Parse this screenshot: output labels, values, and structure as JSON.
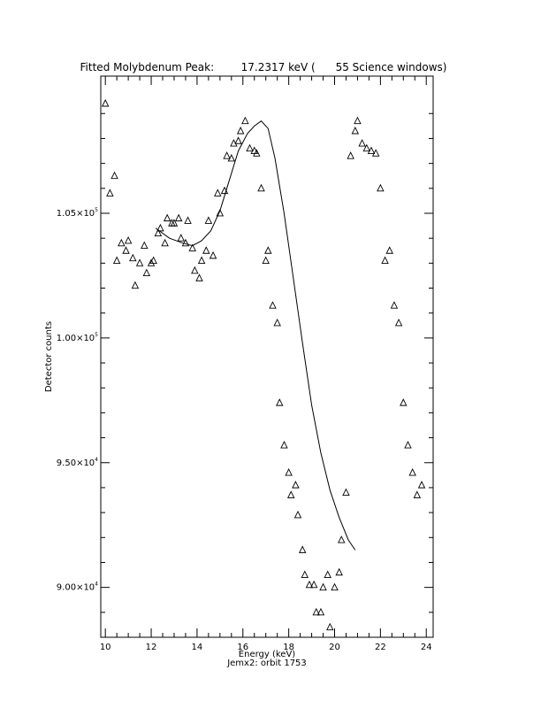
{
  "chart_data": {
    "type": "scatter",
    "title": "Fitted Molybdenum Peak:        17.2317 keV (      55 Science windows)",
    "xlabel": "Energy (keV)",
    "ylabel": "Detector counts",
    "footer": "Jemx2: orbit 1753",
    "xlim": [
      9.8,
      24.3
    ],
    "ylim": [
      88000,
      110500
    ],
    "x_ticks": [
      10,
      12,
      14,
      16,
      18,
      20,
      22,
      24
    ],
    "x_tick_labels": [
      "10",
      "12",
      "14",
      "16",
      "18",
      "20",
      "22",
      "24"
    ],
    "y_ticks": [
      90000,
      95000,
      100000,
      105000
    ],
    "y_tick_labels": [
      {
        "mantissa": "9.00×10",
        "exp": "4"
      },
      {
        "mantissa": "9.50×10",
        "exp": "4"
      },
      {
        "mantissa": "1.00×10",
        "exp": "5"
      },
      {
        "mantissa": "1.05×10",
        "exp": "5"
      }
    ],
    "x_minor_step": 0.5,
    "y_minor_step": 1000,
    "grid": false,
    "series": [
      {
        "marker": "triangle",
        "x": [
          10.0,
          10.2,
          10.4,
          10.5,
          10.7,
          10.9,
          11.0,
          11.2,
          11.3,
          11.5,
          11.7,
          11.8,
          12.0,
          12.1,
          12.3,
          12.4,
          12.6,
          12.7,
          12.9,
          13.0,
          13.2,
          13.3,
          13.5,
          13.6,
          13.8,
          13.9,
          14.1,
          14.2,
          14.4,
          14.5,
          14.7,
          14.9,
          15.0,
          15.2,
          15.3,
          15.5,
          15.6,
          15.8,
          15.9,
          16.1,
          16.3,
          16.5,
          16.6,
          16.8,
          17.0,
          17.1,
          17.3,
          17.5,
          17.6,
          17.8,
          18.0,
          18.1,
          18.3,
          18.4,
          18.6,
          18.7,
          18.9,
          19.1,
          19.2,
          19.4,
          19.5,
          19.7,
          19.8,
          20.0,
          20.2,
          20.3,
          20.5,
          20.7,
          20.9,
          21.0,
          21.2,
          21.4,
          21.6,
          21.8,
          22.0,
          22.2,
          22.4,
          22.6,
          22.8,
          23.0,
          23.2,
          23.4,
          23.6,
          23.8
        ],
        "y": [
          109400,
          105800,
          106500,
          103100,
          103800,
          103500,
          103900,
          103200,
          102100,
          103000,
          103700,
          102600,
          103000,
          103100,
          104200,
          104400,
          103800,
          104800,
          104600,
          104600,
          104800,
          104000,
          103800,
          104700,
          103600,
          102700,
          102400,
          103100,
          103500,
          104700,
          103300,
          105800,
          105000,
          105900,
          107300,
          107200,
          107800,
          107900,
          108300,
          108700,
          107600,
          107500,
          107400,
          106000,
          103100,
          103500,
          101300,
          100600,
          97400,
          95700,
          94600,
          93700,
          94100,
          92900,
          91500,
          90500,
          90100,
          90100,
          89000,
          89000,
          90000,
          90500,
          88400,
          90000,
          90600,
          91900,
          93800,
          107300,
          108300,
          108700,
          107800,
          107600,
          107500,
          107400,
          106000,
          103100,
          103500,
          101300,
          100600,
          97400,
          95700,
          94600,
          93700,
          94100
        ]
      },
      {
        "style": "line",
        "x": [
          12.2,
          12.8,
          13.4,
          13.8,
          14.2,
          14.6,
          15.0,
          15.4,
          15.8,
          16.2,
          16.5,
          16.8,
          17.1,
          17.4,
          17.8,
          18.2,
          18.6,
          19.0,
          19.4,
          19.8,
          20.2,
          20.6,
          20.9
        ],
        "y": [
          104400,
          104000,
          103800,
          103700,
          103900,
          104300,
          105100,
          106300,
          107500,
          108200,
          108500,
          108700,
          108400,
          107200,
          105000,
          102400,
          99800,
          97300,
          95400,
          93900,
          92800,
          91900,
          91500
        ]
      }
    ]
  }
}
